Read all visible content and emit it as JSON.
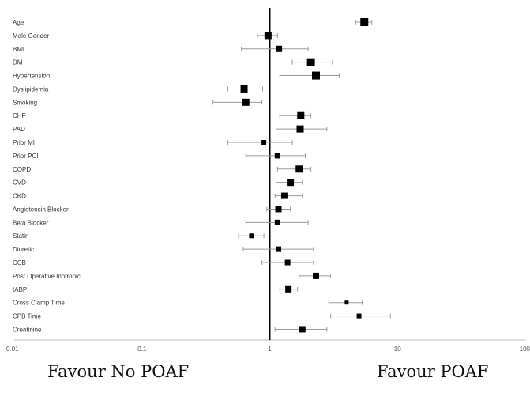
{
  "chart_data": {
    "type": "forest",
    "xscale": "log",
    "xlim": [
      0.01,
      100
    ],
    "xticks": [
      "0.01",
      "0.1",
      "1",
      "10",
      "100"
    ],
    "xtick_values": [
      0.01,
      0.1,
      1,
      10,
      100
    ],
    "reference_line": 1,
    "grid": false,
    "rows": [
      {
        "label": "Age",
        "estimate": 5.5,
        "lower": 4.7,
        "upper": 6.3
      },
      {
        "label": "Male Gender",
        "estimate": 0.97,
        "lower": 0.8,
        "upper": 1.15
      },
      {
        "label": "BMI",
        "estimate": 1.18,
        "lower": 0.6,
        "upper": 2.0
      },
      {
        "label": "DM",
        "estimate": 2.1,
        "lower": 1.5,
        "upper": 3.1
      },
      {
        "label": "Hypertension",
        "estimate": 2.3,
        "lower": 1.2,
        "upper": 3.5
      },
      {
        "label": "Dyslipidemia",
        "estimate": 0.63,
        "lower": 0.47,
        "upper": 0.88
      },
      {
        "label": "Smoking",
        "estimate": 0.65,
        "lower": 0.36,
        "upper": 0.87
      },
      {
        "label": "CHF",
        "estimate": 1.75,
        "lower": 1.2,
        "upper": 2.1
      },
      {
        "label": "PAD",
        "estimate": 1.73,
        "lower": 1.12,
        "upper": 2.8
      },
      {
        "label": "Prior MI",
        "estimate": 0.9,
        "lower": 0.47,
        "upper": 1.5
      },
      {
        "label": "Prior PCI",
        "estimate": 1.15,
        "lower": 0.65,
        "upper": 1.9
      },
      {
        "label": "COPD",
        "estimate": 1.7,
        "lower": 1.15,
        "upper": 2.1
      },
      {
        "label": "CVD",
        "estimate": 1.45,
        "lower": 1.12,
        "upper": 1.8
      },
      {
        "label": "CKD",
        "estimate": 1.3,
        "lower": 1.1,
        "upper": 1.8
      },
      {
        "label": "Angiotensin Blocker",
        "estimate": 1.17,
        "lower": 0.95,
        "upper": 1.45
      },
      {
        "label": "Beta Blocker",
        "estimate": 1.15,
        "lower": 0.65,
        "upper": 2.0
      },
      {
        "label": "Statin",
        "estimate": 0.72,
        "lower": 0.57,
        "upper": 0.9
      },
      {
        "label": "Diuretic",
        "estimate": 1.17,
        "lower": 0.62,
        "upper": 2.2
      },
      {
        "label": "CCB",
        "estimate": 1.38,
        "lower": 0.87,
        "upper": 2.2
      },
      {
        "label": "Post Operative Inotropic",
        "estimate": 2.3,
        "lower": 1.7,
        "upper": 3.0
      },
      {
        "label": "IABP",
        "estimate": 1.4,
        "lower": 1.2,
        "upper": 1.65
      },
      {
        "label": "Cross Clamp Time",
        "estimate": 4.0,
        "lower": 2.9,
        "upper": 5.3
      },
      {
        "label": "CPB Time",
        "estimate": 5.0,
        "lower": 3.0,
        "upper": 8.8
      },
      {
        "label": "Creatinine",
        "estimate": 1.8,
        "lower": 1.1,
        "upper": 2.8
      }
    ],
    "marker_sizes": [
      10,
      9,
      8,
      10,
      10,
      9,
      9,
      9,
      9,
      6,
      7,
      9,
      9,
      8,
      8,
      7,
      6,
      7,
      7,
      8,
      8,
      5,
      6,
      8
    ],
    "colors": {
      "marker": "#000000",
      "whisker": "#9a9a9a",
      "reference": "#000000",
      "axis": "#bbbbbb",
      "text": "#333333"
    }
  },
  "footer": {
    "left": "Favour No POAF",
    "right": "Favour POAF"
  }
}
